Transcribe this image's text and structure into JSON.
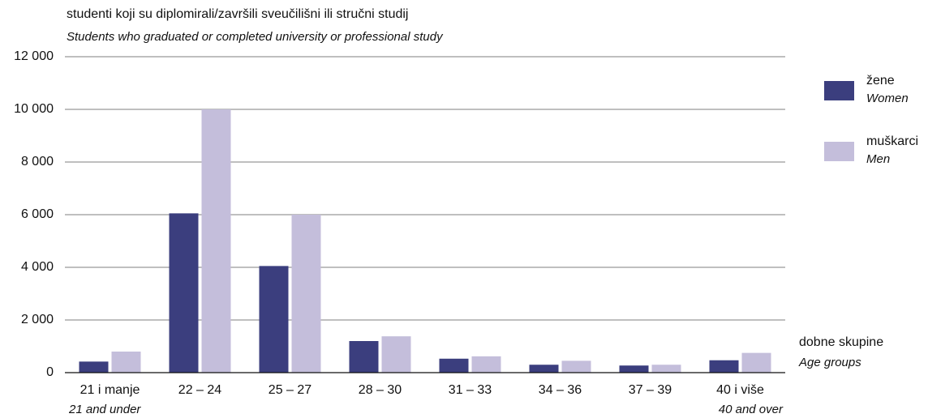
{
  "chart_data": {
    "type": "bar",
    "title": "studenti koji su diplomirali/završili sveučilišni ili stručni studij",
    "subtitle": "Students who graduated or completed university or professional study",
    "x_label": "dobne skupine",
    "x_label_en": "Age groups",
    "categories": [
      "21 i manje",
      "22 – 24",
      "25 – 27",
      "28 – 30",
      "31 – 33",
      "34 – 36",
      "37 – 39",
      "40 i više"
    ],
    "categories_en": [
      "21 and under",
      null,
      null,
      null,
      null,
      null,
      null,
      "40 and over"
    ],
    "series": [
      {
        "name": "žene",
        "name_en": "Women",
        "color": "#3b3e7e",
        "values": [
          420,
          6050,
          4050,
          1200,
          530,
          300,
          270,
          470
        ]
      },
      {
        "name": "muškarci",
        "name_en": "Men",
        "color": "#c4bedb",
        "values": [
          800,
          10000,
          6000,
          1380,
          620,
          450,
          300,
          750
        ]
      }
    ],
    "ylim": [
      0,
      12000
    ],
    "yticks": [
      0,
      {
        "value": 2000,
        "label": "2 000"
      },
      {
        "value": 4000,
        "label": "4 000"
      },
      {
        "value": 6000,
        "label": "6 000"
      },
      {
        "value": 8000,
        "label": "8 000"
      },
      {
        "value": 10000,
        "label": "10 000"
      },
      {
        "value": 12000,
        "label": "12 000"
      }
    ],
    "grid": true,
    "legend": "right"
  }
}
